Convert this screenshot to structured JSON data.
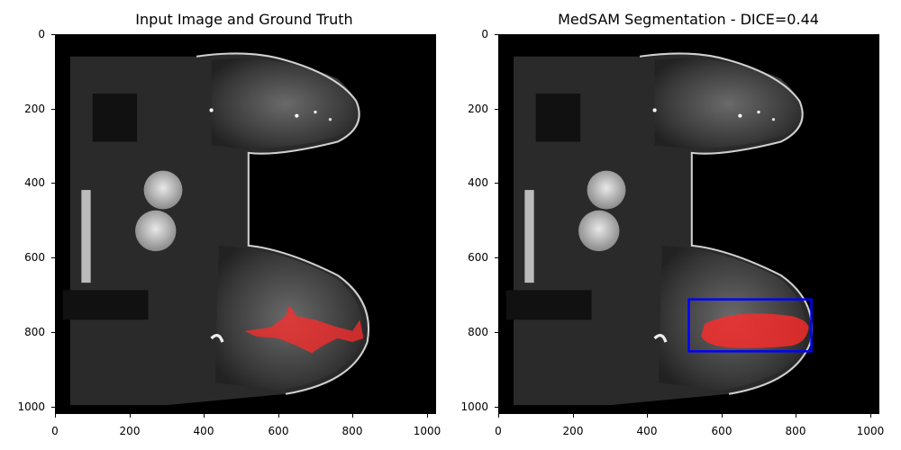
{
  "panels": [
    {
      "title": "Input Image and Ground Truth",
      "y_ticks": [
        "0",
        "200",
        "400",
        "600",
        "800",
        "1000"
      ],
      "x_ticks": [
        "0",
        "200",
        "400",
        "600",
        "800",
        "1000"
      ]
    },
    {
      "title": "MedSAM Segmentation - DICE=0.44",
      "y_ticks": [
        "0",
        "200",
        "400",
        "600",
        "800",
        "1000"
      ],
      "x_ticks": [
        "0",
        "200",
        "400",
        "600",
        "800",
        "1000"
      ],
      "bounding_box_color": "#0000ff"
    }
  ],
  "colors": {
    "mask": "#ff2b2b",
    "background": "#000000"
  }
}
